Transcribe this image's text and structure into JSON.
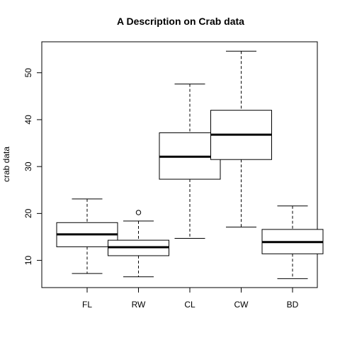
{
  "chart_data": {
    "type": "boxplot",
    "title": "A Description on Crab data",
    "xlabel": "",
    "ylabel": "crab data",
    "ylim": [
      4.2,
      56.6
    ],
    "yticks": [
      10,
      20,
      30,
      40,
      50
    ],
    "categories": [
      "FL",
      "RW",
      "CL",
      "CW",
      "BD"
    ],
    "boxes": [
      {
        "label": "FL",
        "whisker_low": 7.2,
        "q1": 12.9,
        "median": 15.55,
        "q3": 18.05,
        "whisker_high": 23.1,
        "outliers": []
      },
      {
        "label": "RW",
        "whisker_low": 6.5,
        "q1": 11.0,
        "median": 12.8,
        "q3": 14.3,
        "whisker_high": 18.4,
        "outliers": [
          20.2
        ]
      },
      {
        "label": "CL",
        "whisker_low": 14.7,
        "q1": 27.3,
        "median": 32.1,
        "q3": 37.2,
        "whisker_high": 47.6,
        "outliers": []
      },
      {
        "label": "CW",
        "whisker_low": 17.1,
        "q1": 31.5,
        "median": 36.8,
        "q3": 42.0,
        "whisker_high": 54.6,
        "outliers": []
      },
      {
        "label": "BD",
        "whisker_low": 6.1,
        "q1": 11.4,
        "median": 13.9,
        "q3": 16.6,
        "whisker_high": 21.6,
        "outliers": []
      }
    ]
  }
}
